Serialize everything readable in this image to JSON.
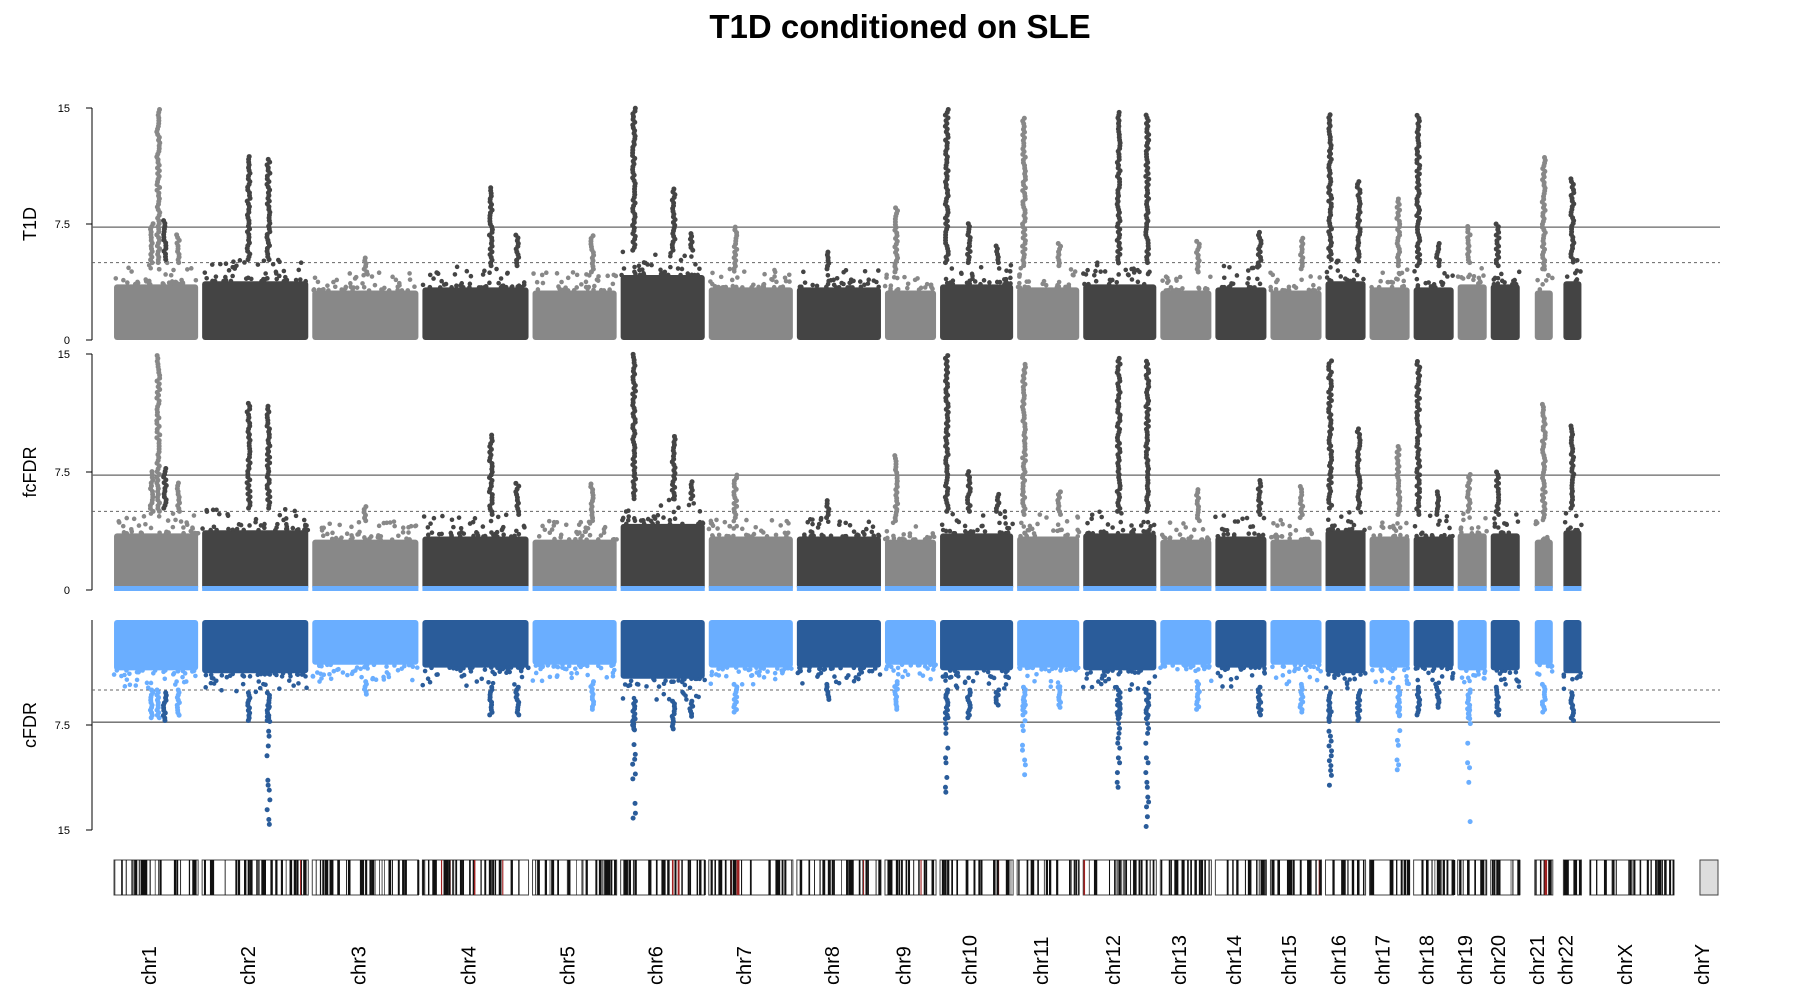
{
  "chart_data": {
    "type": "scatter",
    "title": "T1D conditioned on SLE",
    "panels": [
      {
        "name": "T1D",
        "ylabel": "T1D",
        "ylim": [
          0,
          15
        ],
        "ticks": [
          "0",
          "7.5",
          "15"
        ],
        "direction": "up"
      },
      {
        "name": "fcFDR",
        "ylabel": "fcFDR",
        "ylim": [
          0,
          15
        ],
        "ticks": [
          "0",
          "7.5",
          "15"
        ],
        "direction": "up"
      },
      {
        "name": "cFDR",
        "ylabel": "cFDR",
        "ylim": [
          0,
          15
        ],
        "ticks": [
          "0",
          "7.5",
          "15"
        ],
        "direction": "down"
      }
    ],
    "threshold_lines": {
      "solid": 7.3,
      "dashed": 5
    },
    "chromosomes": [
      {
        "label": "chr1",
        "band": [
          1,
          5
        ],
        "baseline": 3.6,
        "typ_max": 5,
        "peaks": [
          [
            3.1,
            15
          ],
          [
            2.8,
            7.6
          ],
          [
            4.0,
            6.8
          ]
        ]
      },
      {
        "label": "chr2",
        "band": [
          5,
          10
        ],
        "baseline": 3.8,
        "typ_max": 5.2,
        "peaks": [
          [
            3.4,
            7.8
          ],
          [
            7.2,
            12
          ],
          [
            8.1,
            11.8
          ]
        ]
      },
      {
        "label": "chr3",
        "band": [
          10,
          15
        ],
        "baseline": 3.2,
        "typ_max": 4.4,
        "peaks": [
          [
            12.5,
            5.4
          ]
        ]
      },
      {
        "label": "chr4",
        "band": [
          15,
          20
        ],
        "baseline": 3.4,
        "typ_max": 4.8,
        "peaks": [
          [
            18.2,
            10
          ],
          [
            19.4,
            6.8
          ]
        ]
      },
      {
        "label": "chr5",
        "band": [
          20,
          24
        ],
        "baseline": 3.2,
        "typ_max": 4.4,
        "peaks": [
          [
            22.8,
            6.8
          ]
        ]
      },
      {
        "label": "chr6",
        "band": [
          24,
          28
        ],
        "baseline": 4.2,
        "typ_max": 5.8,
        "peaks": [
          [
            24.7,
            15
          ],
          [
            26.5,
            9.8
          ],
          [
            27.3,
            7.0
          ]
        ]
      },
      {
        "label": "chr7",
        "band": [
          28,
          32
        ],
        "baseline": 3.4,
        "typ_max": 4.6,
        "peaks": [
          [
            29.3,
            7.4
          ]
        ]
      },
      {
        "label": "chr8",
        "band": [
          32,
          36
        ],
        "baseline": 3.4,
        "typ_max": 4.6,
        "peaks": [
          [
            33.5,
            5.8
          ]
        ]
      },
      {
        "label": "chr9",
        "band": [
          36,
          38.5
        ],
        "baseline": 3.2,
        "typ_max": 4.4,
        "peaks": [
          [
            36.6,
            8.6
          ]
        ]
      },
      {
        "label": "chr10",
        "band": [
          38.5,
          42
        ],
        "baseline": 3.6,
        "typ_max": 5,
        "peaks": [
          [
            38.9,
            15
          ],
          [
            39.9,
            7.6
          ],
          [
            41.2,
            6.2
          ]
        ]
      },
      {
        "label": "chr11",
        "band": [
          42,
          45
        ],
        "baseline": 3.4,
        "typ_max": 4.8,
        "peaks": [
          [
            42.4,
            14.4
          ],
          [
            44.0,
            6.3
          ]
        ]
      },
      {
        "label": "chr12",
        "band": [
          45,
          48.5
        ],
        "baseline": 3.6,
        "typ_max": 5,
        "peaks": [
          [
            46.7,
            14.8
          ],
          [
            48.0,
            14.7
          ]
        ]
      },
      {
        "label": "chr13",
        "band": [
          48.5,
          51
        ],
        "baseline": 3.2,
        "typ_max": 4.4,
        "peaks": [
          [
            50.3,
            6.4
          ]
        ]
      },
      {
        "label": "chr14",
        "band": [
          51,
          53.5
        ],
        "baseline": 3.4,
        "typ_max": 4.8,
        "peaks": [
          [
            53.1,
            7.0
          ]
        ]
      },
      {
        "label": "chr15",
        "band": [
          53.5,
          56
        ],
        "baseline": 3.2,
        "typ_max": 4.6,
        "peaks": [
          [
            55.0,
            6.6
          ]
        ]
      },
      {
        "label": "chr16",
        "band": [
          56,
          58
        ],
        "baseline": 3.8,
        "typ_max": 5.2,
        "peaks": [
          [
            56.3,
            14.6
          ],
          [
            57.6,
            10.3
          ]
        ]
      },
      {
        "label": "chr17",
        "band": [
          58,
          60
        ],
        "baseline": 3.4,
        "typ_max": 4.8,
        "peaks": [
          [
            59.4,
            9.2
          ]
        ]
      },
      {
        "label": "chr18",
        "band": [
          60,
          62
        ],
        "baseline": 3.4,
        "typ_max": 4.8,
        "peaks": [
          [
            60.3,
            14.6
          ],
          [
            61.2,
            6.4
          ]
        ]
      },
      {
        "label": "chr19",
        "band": [
          62,
          63.5
        ],
        "baseline": 3.6,
        "typ_max": 5,
        "peaks": [
          [
            62.6,
            7.4
          ]
        ]
      },
      {
        "label": "chr20",
        "band": [
          63.5,
          65
        ],
        "baseline": 3.6,
        "typ_max": 4.8,
        "peaks": [
          [
            63.9,
            7.6
          ]
        ]
      },
      {
        "label": "chr21",
        "band": [
          65.5,
          66.5
        ],
        "baseline": 3.2,
        "typ_max": 4.6,
        "peaks": [
          [
            66.0,
            11.8
          ]
        ]
      },
      {
        "label": "chr22",
        "band": [
          66.8,
          67.8
        ],
        "baseline": 3.8,
        "typ_max": 5.2,
        "peaks": [
          [
            67.3,
            10.5
          ]
        ]
      },
      {
        "label": "chrX",
        "band": [
          68,
          72
        ],
        "baseline": 0,
        "typ_max": 0,
        "peaks": []
      },
      {
        "label": "chrY",
        "band": [
          73,
          74
        ],
        "baseline": 0,
        "typ_max": 0,
        "peaks": []
      }
    ],
    "cfdr_extra_peaks": [
      [
        4.6,
        1.2
      ],
      [
        24.7,
        15
      ],
      [
        38.9,
        12.5
      ],
      [
        42.4,
        12.5
      ],
      [
        46.7,
        12
      ],
      [
        48.0,
        14.8
      ],
      [
        56.3,
        13.5
      ],
      [
        62.6,
        14.4
      ],
      [
        8.1,
        14.8
      ],
      [
        59.4,
        11
      ]
    ],
    "colors": {
      "grey_light": "#888888",
      "grey_dark": "#444444",
      "blue_light": "#6aaeff",
      "blue_dark": "#2a5c9a",
      "axis": "#000000",
      "threshold": "#666666"
    },
    "x_range": [
      0,
      74
    ]
  }
}
